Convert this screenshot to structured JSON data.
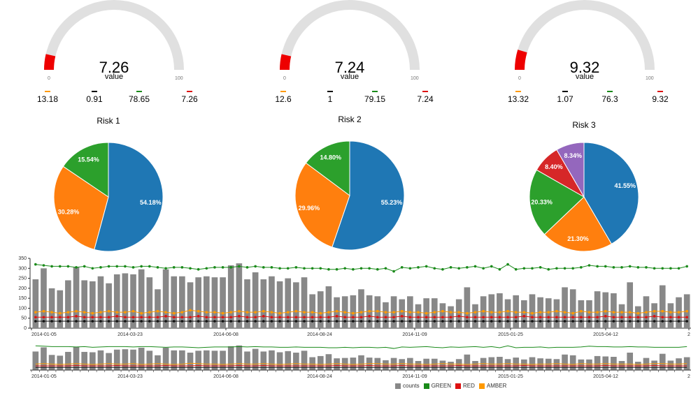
{
  "colors": {
    "blue": "#1f77b4",
    "orange": "#ff7f0e",
    "green": "#2ca02c",
    "red": "#d62728",
    "purple": "#9467bd",
    "gauge_track": "#e0e0e0",
    "gauge_fill": "#ee0000",
    "bar": "#888888",
    "green_line": "#1a8a1a",
    "red_line": "#dd1111",
    "amber_line": "#ff9900",
    "black_line": "#111111"
  },
  "gauges": [
    {
      "value": "7.26",
      "label": "value",
      "min": "0",
      "max": "100",
      "fill": 0.0726,
      "stats": [
        {
          "color": "#ff9900",
          "value": "13.18"
        },
        {
          "color": "#000000",
          "value": "0.91"
        },
        {
          "color": "#1a8a1a",
          "value": "78.65"
        },
        {
          "color": "#dd1111",
          "value": "7.26"
        }
      ]
    },
    {
      "value": "7.24",
      "label": "value",
      "min": "0",
      "max": "100",
      "fill": 0.0724,
      "stats": [
        {
          "color": "#ff9900",
          "value": "12.6"
        },
        {
          "color": "#000000",
          "value": "1"
        },
        {
          "color": "#1a8a1a",
          "value": "79.15"
        },
        {
          "color": "#dd1111",
          "value": "7.24"
        }
      ]
    },
    {
      "value": "9.32",
      "label": "value",
      "min": "0",
      "max": "100",
      "fill": 0.0932,
      "stats": [
        {
          "color": "#ff9900",
          "value": "13.32"
        },
        {
          "color": "#000000",
          "value": "1.07"
        },
        {
          "color": "#1a8a1a",
          "value": "76.3"
        },
        {
          "color": "#dd1111",
          "value": "9.32"
        }
      ]
    }
  ],
  "chart_data": [
    {
      "type": "pie",
      "title": "Risk 1",
      "slices": [
        {
          "label": "54.18%",
          "value": 54.18,
          "color": "#1f77b4"
        },
        {
          "label": "30.28%",
          "value": 30.28,
          "color": "#ff7f0e"
        },
        {
          "label": "15.54%",
          "value": 15.54,
          "color": "#2ca02c"
        }
      ]
    },
    {
      "type": "pie",
      "title": "Risk 2",
      "slices": [
        {
          "label": "55.23%",
          "value": 55.23,
          "color": "#1f77b4"
        },
        {
          "label": "29.96%",
          "value": 29.96,
          "color": "#ff7f0e"
        },
        {
          "label": "14.80%",
          "value": 14.8,
          "color": "#2ca02c"
        }
      ]
    },
    {
      "type": "pie",
      "title": "Risk 3",
      "slices": [
        {
          "label": "41.55%",
          "value": 41.55,
          "color": "#1f77b4"
        },
        {
          "label": "21.30%",
          "value": 21.3,
          "color": "#ff7f0e"
        },
        {
          "label": "20.33%",
          "value": 20.33,
          "color": "#2ca02c"
        },
        {
          "label": "8.40%",
          "value": 8.4,
          "color": "#d62728"
        },
        {
          "label": "8.34%",
          "value": 8.34,
          "color": "#9467bd"
        }
      ]
    },
    {
      "type": "bar",
      "title": "",
      "ylim": [
        0,
        350
      ],
      "yticks": [
        "0",
        "50",
        "100",
        "150",
        "200",
        "250",
        "300",
        "350"
      ],
      "x_tick_labels": [
        "2014-01-05",
        "2014-03-23",
        "2014-06-08",
        "2014-08-24",
        "2014-11-09",
        "2015-01-25",
        "2015-04-12",
        "2"
      ],
      "series": [
        {
          "name": "counts",
          "type": "bar",
          "values": [
            245,
            300,
            200,
            190,
            240,
            305,
            240,
            235,
            260,
            225,
            270,
            275,
            270,
            295,
            255,
            195,
            295,
            260,
            260,
            230,
            255,
            260,
            255,
            255,
            315,
            325,
            245,
            280,
            245,
            260,
            235,
            250,
            230,
            255,
            170,
            185,
            210,
            155,
            160,
            165,
            195,
            165,
            160,
            130,
            160,
            145,
            160,
            120,
            150,
            150,
            125,
            110,
            145,
            205,
            120,
            160,
            170,
            175,
            145,
            165,
            140,
            170,
            155,
            150,
            145,
            205,
            195,
            140,
            140,
            185,
            180,
            175,
            120,
            230,
            110,
            160,
            125,
            215,
            125,
            155,
            170
          ]
        },
        {
          "name": "GREEN",
          "type": "line",
          "values": [
            320,
            315,
            310,
            310,
            310,
            305,
            310,
            300,
            305,
            310,
            310,
            310,
            305,
            310,
            310,
            305,
            300,
            305,
            305,
            300,
            295,
            300,
            305,
            305,
            305,
            310,
            305,
            310,
            305,
            305,
            300,
            300,
            305,
            300,
            300,
            300,
            295,
            295,
            300,
            295,
            300,
            300,
            295,
            300,
            285,
            305,
            300,
            305,
            310,
            300,
            295,
            305,
            300,
            305,
            310,
            300,
            310,
            295,
            320,
            295,
            300,
            300,
            305,
            295,
            300,
            300,
            300,
            305,
            315,
            310,
            310,
            305,
            305,
            310,
            305,
            305,
            300,
            300,
            300,
            300,
            310
          ]
        },
        {
          "name": "RED",
          "type": "line",
          "values": [
            55,
            55,
            55,
            55,
            55,
            60,
            55,
            55,
            55,
            55,
            60,
            55,
            55,
            55,
            55,
            55,
            60,
            55,
            55,
            55,
            60,
            55,
            55,
            55,
            55,
            60,
            55,
            55,
            60,
            55,
            55,
            55,
            55,
            55,
            55,
            55,
            55,
            60,
            55,
            55,
            55,
            60,
            55,
            55,
            55,
            60,
            55,
            55,
            55,
            55,
            55,
            55,
            60,
            55,
            55,
            55,
            55,
            55,
            55,
            55,
            60,
            55,
            55,
            55,
            55,
            55,
            55,
            55,
            55,
            55,
            60,
            55,
            55,
            55,
            55,
            55,
            60,
            55,
            55,
            55,
            55
          ]
        },
        {
          "name": "AMBER",
          "type": "line",
          "values": [
            80,
            85,
            80,
            75,
            80,
            85,
            80,
            75,
            80,
            85,
            80,
            80,
            85,
            75,
            80,
            85,
            80,
            75,
            80,
            90,
            85,
            80,
            80,
            75,
            80,
            85,
            80,
            80,
            85,
            80,
            75,
            80,
            85,
            80,
            80,
            75,
            80,
            85,
            80,
            75,
            80,
            85,
            85,
            80,
            80,
            85,
            80,
            80,
            75,
            80,
            85,
            80,
            80,
            75,
            80,
            85,
            80,
            80,
            85,
            80,
            80,
            75,
            80,
            80,
            85,
            80,
            75,
            85,
            80,
            80,
            85,
            80,
            80,
            80,
            75,
            80,
            85,
            85,
            80,
            80,
            85
          ]
        },
        {
          "name": "",
          "type": "line",
          "values": [
            35,
            35,
            35,
            35,
            35,
            35,
            35,
            35,
            35,
            35,
            35,
            35,
            35,
            35,
            35,
            35,
            35,
            35,
            35,
            35,
            35,
            35,
            35,
            35,
            35,
            35,
            35,
            35,
            35,
            35,
            35,
            35,
            35,
            35,
            35,
            35,
            35,
            35,
            35,
            35,
            35,
            35,
            35,
            35,
            35,
            35,
            35,
            35,
            35,
            35,
            35,
            35,
            35,
            35,
            35,
            35,
            35,
            35,
            35,
            35,
            35,
            35,
            35,
            35,
            35,
            35,
            35,
            35,
            35,
            35,
            35,
            35,
            35,
            35,
            35,
            35,
            35,
            35,
            35,
            35,
            35
          ]
        }
      ]
    }
  ],
  "legend": [
    {
      "label": "counts",
      "color": "#888888"
    },
    {
      "label": "GREEN",
      "color": "#1a8a1a"
    },
    {
      "label": "RED",
      "color": "#dd1111"
    },
    {
      "label": "AMBER",
      "color": "#ff9900"
    }
  ]
}
